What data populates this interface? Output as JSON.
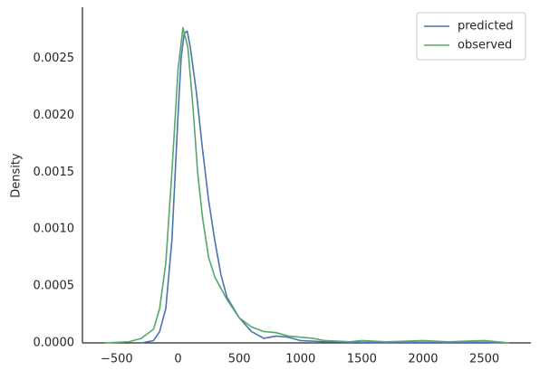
{
  "chart_data": {
    "type": "line",
    "ylabel": "Density",
    "xlim": [
      -780,
      2880
    ],
    "ylim": [
      0,
      0.00295
    ],
    "xticks": [
      {
        "value": -500,
        "label": "−500"
      },
      0,
      500,
      1000,
      1500,
      2000,
      2500
    ],
    "yticks": [
      {
        "value": 0,
        "label": "0.0000"
      },
      {
        "value": 0.0005,
        "label": "0.0005"
      },
      {
        "value": 0.001,
        "label": "0.0010"
      },
      {
        "value": 0.0015,
        "label": "0.0015"
      },
      {
        "value": 0.002,
        "label": "0.0020"
      },
      {
        "value": 0.0025,
        "label": "0.0025"
      }
    ],
    "grid": false,
    "legend": "upper-right",
    "series": [
      {
        "name": "predicted",
        "color": "#4c72b0",
        "x": [
          -300,
          -200,
          -150,
          -100,
          -50,
          0,
          25,
          50,
          75,
          100,
          150,
          200,
          250,
          300,
          350,
          400,
          500,
          600,
          700,
          800,
          900,
          1000,
          1200,
          1500,
          2000,
          2500,
          2650
        ],
        "values": [
          0,
          2e-05,
          0.0001,
          0.0003,
          0.0009,
          0.002,
          0.0025,
          0.00272,
          0.00274,
          0.0026,
          0.0022,
          0.0017,
          0.00125,
          0.0009,
          0.0006,
          0.0004,
          0.00022,
          0.0001,
          4e-05,
          6e-05,
          5e-05,
          2e-05,
          1e-05,
          5e-06,
          5e-06,
          5e-06,
          0
        ]
      },
      {
        "name": "observed",
        "color": "#55a868",
        "x": [
          -600,
          -400,
          -300,
          -200,
          -150,
          -100,
          -50,
          0,
          40,
          80,
          120,
          160,
          200,
          250,
          300,
          400,
          500,
          600,
          700,
          800,
          900,
          1000,
          1100,
          1200,
          1400,
          1500,
          1700,
          2000,
          2200,
          2500,
          2700
        ],
        "values": [
          0,
          1e-05,
          4e-05,
          0.00012,
          0.0003,
          0.0007,
          0.0015,
          0.0024,
          0.00277,
          0.0026,
          0.0021,
          0.0015,
          0.0011,
          0.00075,
          0.00058,
          0.00038,
          0.00022,
          0.00014,
          0.0001,
          9e-05,
          6e-05,
          5e-05,
          4e-05,
          2e-05,
          1e-05,
          2e-05,
          1e-05,
          2e-05,
          1e-05,
          2e-05,
          0
        ]
      }
    ]
  }
}
